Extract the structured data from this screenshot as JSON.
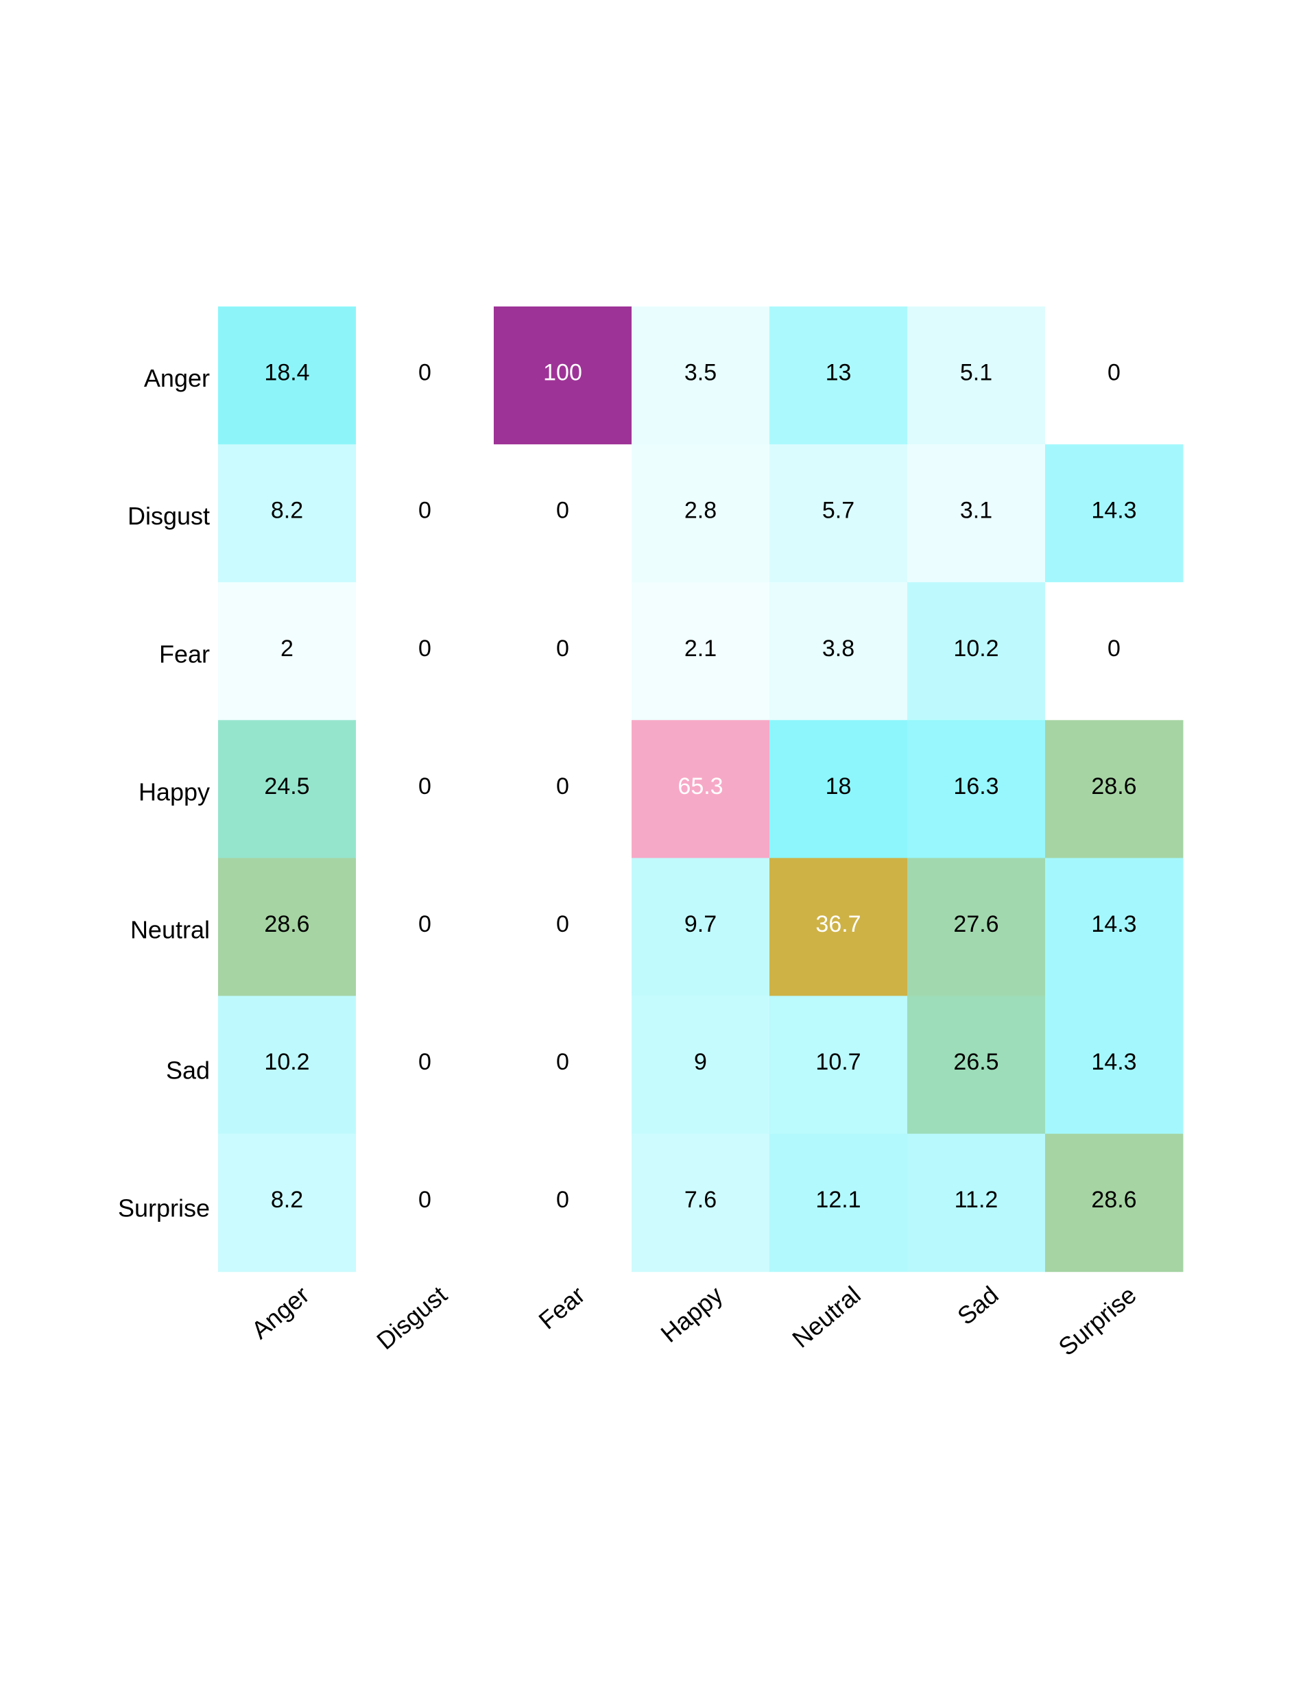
{
  "chart_data": {
    "type": "heatmap",
    "title": "",
    "xlabel": "",
    "ylabel": "",
    "x_categories": [
      "Anger",
      "Disgust",
      "Fear",
      "Happy",
      "Neutral",
      "Sad",
      "Surprise"
    ],
    "y_categories": [
      "Anger",
      "Disgust",
      "Fear",
      "Happy",
      "Neutral",
      "Sad",
      "Surprise"
    ],
    "values": [
      [
        18.4,
        0,
        100,
        3.5,
        13,
        5.1,
        0
      ],
      [
        8.2,
        0,
        0,
        2.8,
        5.7,
        3.1,
        14.3
      ],
      [
        2,
        0,
        0,
        2.1,
        3.8,
        10.2,
        0
      ],
      [
        24.5,
        0,
        0,
        65.3,
        18,
        16.3,
        28.6
      ],
      [
        28.6,
        0,
        0,
        9.7,
        36.7,
        27.6,
        14.3
      ],
      [
        10.2,
        0,
        0,
        9,
        10.7,
        26.5,
        14.3
      ],
      [
        8.2,
        0,
        0,
        7.6,
        12.1,
        11.2,
        28.6
      ]
    ],
    "value_range": [
      0,
      100
    ],
    "colorscale": [
      {
        "value": 0,
        "color": "#ffffff"
      },
      {
        "value": 18,
        "color": "#8cf6fc"
      },
      {
        "value": 25,
        "color": "#96e4c9"
      },
      {
        "value": 29,
        "color": "#a8d29f"
      },
      {
        "value": 37,
        "color": "#cfb143"
      },
      {
        "value": 65,
        "color": "#f7aac6"
      },
      {
        "value": 100,
        "color": "#9e3397"
      }
    ],
    "text_colors": {
      "dark": "#000000",
      "light": "#ffffff"
    },
    "light_text_threshold": 36,
    "legend": "none",
    "grid": false
  }
}
